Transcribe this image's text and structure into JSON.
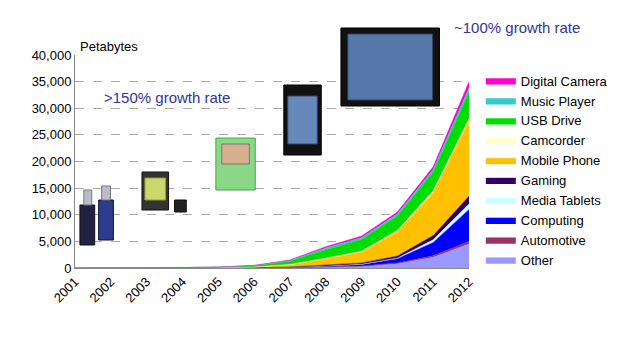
{
  "chart_data": {
    "type": "area",
    "ylabel": "Petabytes",
    "annotations": [
      ">150% growth rate",
      "~100% growth rate"
    ],
    "categories": [
      "2001",
      "2002",
      "2003",
      "2004",
      "2005",
      "2006",
      "2007",
      "2008",
      "2009",
      "2010",
      "2011",
      "2012"
    ],
    "series": [
      {
        "name": "Other",
        "color": "#9999ff",
        "values": [
          0,
          0,
          1,
          2,
          5,
          20,
          50,
          150,
          300,
          800,
          2000,
          4500
        ]
      },
      {
        "name": "Automotive",
        "color": "#993366",
        "values": [
          0,
          0,
          0,
          1,
          2,
          5,
          20,
          50,
          80,
          150,
          300,
          500
        ]
      },
      {
        "name": "Computing",
        "color": "#0000ff",
        "values": [
          0,
          1,
          2,
          4,
          10,
          20,
          60,
          150,
          300,
          800,
          2500,
          6000
        ]
      },
      {
        "name": "Media Tablets",
        "color": "#ccffff",
        "values": [
          0,
          0,
          0,
          0,
          0,
          0,
          0,
          0,
          20,
          100,
          500,
          1000
        ]
      },
      {
        "name": "Gaming",
        "color": "#330066",
        "values": [
          0,
          0,
          1,
          2,
          5,
          15,
          50,
          150,
          250,
          400,
          800,
          1500
        ]
      },
      {
        "name": "Mobile Phone",
        "color": "#ffc000",
        "values": [
          1,
          2,
          5,
          15,
          40,
          120,
          400,
          1200,
          2000,
          4500,
          8000,
          14000
        ]
      },
      {
        "name": "Camcorder",
        "color": "#ffffcc",
        "values": [
          0,
          1,
          2,
          5,
          10,
          30,
          80,
          150,
          200,
          300,
          400,
          500
        ]
      },
      {
        "name": "USB Drive",
        "color": "#00dd00",
        "values": [
          2,
          3,
          10,
          30,
          80,
          200,
          600,
          1600,
          2200,
          2700,
          3500,
          5000
        ]
      },
      {
        "name": "Music Player",
        "color": "#33cccc",
        "values": [
          1,
          2,
          5,
          12,
          30,
          50,
          140,
          300,
          350,
          400,
          500,
          800
        ]
      },
      {
        "name": "Digital Camera",
        "color": "#ff00cc",
        "values": [
          1,
          1,
          4,
          9,
          18,
          40,
          100,
          250,
          300,
          350,
          500,
          1200
        ]
      }
    ],
    "ylim": [
      0,
      40000
    ],
    "yticks": [
      0,
      {
        "value": 5000,
        "label": "5,000"
      },
      {
        "value": 10000,
        "label": "10,000"
      },
      {
        "value": 15000,
        "label": "15,000"
      },
      {
        "value": 20000,
        "label": "20,000"
      },
      {
        "value": 25000,
        "label": "25,000"
      },
      {
        "value": 30000,
        "label": "30,000"
      },
      {
        "value": 35000,
        "label": "35,000"
      },
      {
        "value": 40000,
        "label": "40,000"
      }
    ],
    "grid": true,
    "stacked": true,
    "legend": "right"
  }
}
